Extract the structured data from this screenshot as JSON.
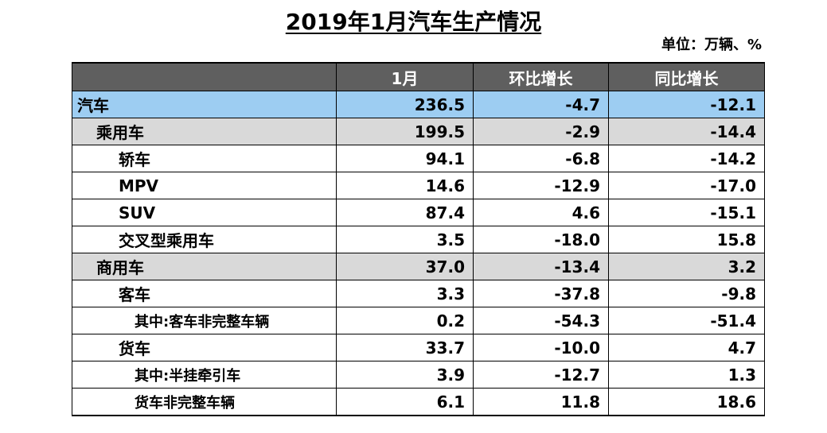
{
  "title": "2019年1月汽车生产情况",
  "unit": "单位：万辆、%",
  "table": {
    "headers": [
      "",
      "1月",
      "环比增长",
      "同比增长"
    ],
    "rows": [
      {
        "level": 0,
        "name": "汽车",
        "jan": "236.5",
        "mom": "-4.7",
        "yoy": "-12.1"
      },
      {
        "level": 1,
        "name": "乘用车",
        "jan": "199.5",
        "mom": "-2.9",
        "yoy": "-14.4"
      },
      {
        "level": 2,
        "name": "轿车",
        "jan": "94.1",
        "mom": "-6.8",
        "yoy": "-14.2"
      },
      {
        "level": 2,
        "name": "MPV",
        "jan": "14.6",
        "mom": "-12.9",
        "yoy": "-17.0"
      },
      {
        "level": 2,
        "name": "SUV",
        "jan": "87.4",
        "mom": "4.6",
        "yoy": "-15.1"
      },
      {
        "level": 2,
        "name": "交叉型乘用车",
        "jan": "3.5",
        "mom": "-18.0",
        "yoy": "15.8"
      },
      {
        "level": 1,
        "name": "商用车",
        "jan": "37.0",
        "mom": "-13.4",
        "yoy": "3.2"
      },
      {
        "level": 2,
        "name": "客车",
        "jan": "3.3",
        "mom": "-37.8",
        "yoy": "-9.8"
      },
      {
        "level": 3,
        "name": "其中:客车非完整车辆",
        "jan": "0.2",
        "mom": "-54.3",
        "yoy": "-51.4"
      },
      {
        "level": 2,
        "name": "货车",
        "jan": "33.7",
        "mom": "-10.0",
        "yoy": "4.7"
      },
      {
        "level": 3,
        "name": "其中:半挂牵引车",
        "jan": "3.9",
        "mom": "-12.7",
        "yoy": "1.3"
      },
      {
        "level": 3,
        "name": "货车非完整车辆",
        "jan": "6.1",
        "mom": "11.8",
        "yoy": "18.6"
      }
    ]
  },
  "colors": {
    "header_bg": "#5f5f5f",
    "total_row_bg": "#9dcdf2",
    "category_row_bg": "#d9d9d9"
  }
}
